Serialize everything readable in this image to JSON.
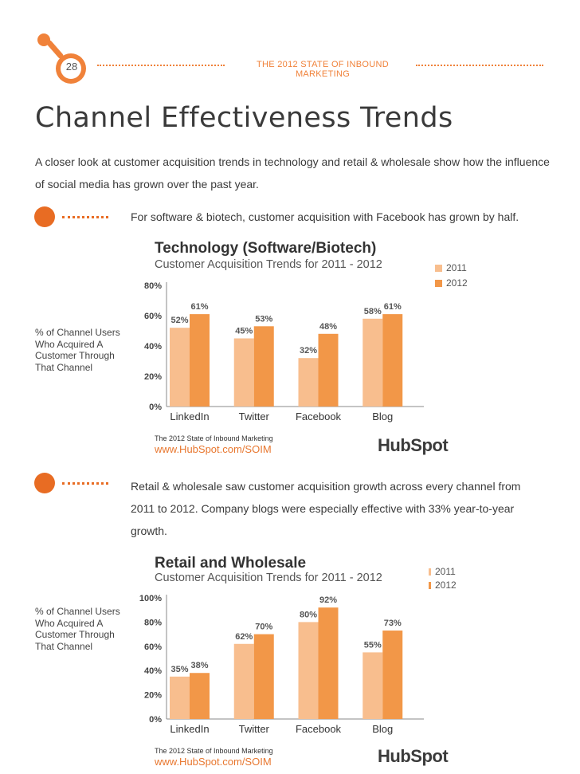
{
  "header": {
    "page_number": "28",
    "title": "THE 2012 STATE OF INBOUND MARKETING"
  },
  "page_title": "Channel Effectiveness Trends",
  "intro": "A closer look at customer acquisition trends in technology and retail & wholesale show how the influence of social media has grown over the past year.",
  "callouts": [
    "For software & biotech, customer acquisition with Facebook has grown by half.",
    "Retail & wholesale saw customer acquisition growth across every channel from 2011 to 2012. Company blogs were especially effective with 33% year-to-year growth."
  ],
  "colors": {
    "accent": "#f0823a",
    "bar_2011": "#f8be8e",
    "bar_2012": "#f29748"
  },
  "chart_data": [
    {
      "type": "bar",
      "title": "Technology (Software/Biotech)",
      "subtitle": "Customer Acquisition Trends for 2011 - 2012",
      "ylabel": "% of Channel Users Who Acquired A Customer Through That Channel",
      "categories": [
        "LinkedIn",
        "Twitter",
        "Facebook",
        "Blog"
      ],
      "series": [
        {
          "name": "2011",
          "values": [
            52,
            45,
            32,
            58
          ]
        },
        {
          "name": "2012",
          "values": [
            61,
            53,
            48,
            61
          ]
        }
      ],
      "ylim": [
        0,
        80
      ],
      "yticks": [
        "0%",
        "20%",
        "40%",
        "60%",
        "80%"
      ],
      "value_labels": [
        [
          "52%",
          "45%",
          "32%",
          "58%"
        ],
        [
          "61%",
          "53%",
          "48%",
          "61%"
        ]
      ],
      "source": "The 2012 State of Inbound Marketing",
      "url": "www.HubSpot.com/SOIM",
      "brand": "HubSpot"
    },
    {
      "type": "bar",
      "title": "Retail and Wholesale",
      "subtitle": "Customer Acquisition Trends for 2011 - 2012",
      "ylabel": "% of Channel Users Who Acquired A Customer Through That Channel",
      "categories": [
        "LinkedIn",
        "Twitter",
        "Facebook",
        "Blog"
      ],
      "series": [
        {
          "name": "2011",
          "values": [
            35,
            62,
            80,
            55
          ]
        },
        {
          "name": "2012",
          "values": [
            38,
            70,
            92,
            73
          ]
        }
      ],
      "ylim": [
        0,
        100
      ],
      "yticks": [
        "0%",
        "20%",
        "40%",
        "60%",
        "80%",
        "100%"
      ],
      "value_labels": [
        [
          "35%",
          "62%",
          "80%",
          "55%"
        ],
        [
          "38%",
          "70%",
          "92%",
          "73%"
        ]
      ],
      "source": "The 2012 State of Inbound Marketing",
      "url": "www.HubSpot.com/SOIM",
      "brand": "HubSpot"
    }
  ]
}
